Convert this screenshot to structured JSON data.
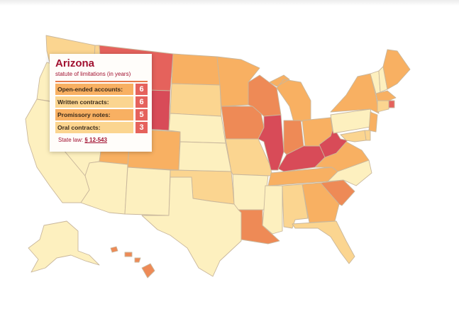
{
  "colors": {
    "y": "#fdf0bf",
    "p": "#fbd590",
    "o": "#f8b062",
    "d": "#ee8a56",
    "r": "#e5625c",
    "x": "#d84b58",
    "border": "#c9b79c"
  },
  "states": [
    {
      "id": "WA",
      "c": "p"
    },
    {
      "id": "OR",
      "c": "y"
    },
    {
      "id": "CA",
      "c": "y"
    },
    {
      "id": "ID",
      "c": "p"
    },
    {
      "id": "NV",
      "c": "y"
    },
    {
      "id": "MT",
      "c": "r"
    },
    {
      "id": "WY",
      "c": "x"
    },
    {
      "id": "UT",
      "c": "o"
    },
    {
      "id": "AZ",
      "c": "y"
    },
    {
      "id": "CO",
      "c": "o"
    },
    {
      "id": "NM",
      "c": "y"
    },
    {
      "id": "ND",
      "c": "o"
    },
    {
      "id": "SD",
      "c": "p"
    },
    {
      "id": "NE",
      "c": "y"
    },
    {
      "id": "KS",
      "c": "y"
    },
    {
      "id": "OK",
      "c": "p"
    },
    {
      "id": "TX",
      "c": "y"
    },
    {
      "id": "MN",
      "c": "o"
    },
    {
      "id": "IA",
      "c": "d"
    },
    {
      "id": "MO",
      "c": "p"
    },
    {
      "id": "AR",
      "c": "y"
    },
    {
      "id": "LA",
      "c": "d"
    },
    {
      "id": "WI",
      "c": "d"
    },
    {
      "id": "IL",
      "c": "x"
    },
    {
      "id": "MS",
      "c": "y"
    },
    {
      "id": "MI",
      "c": "o"
    },
    {
      "id": "IN",
      "c": "d"
    },
    {
      "id": "KY",
      "c": "x"
    },
    {
      "id": "TN",
      "c": "o"
    },
    {
      "id": "AL",
      "c": "p"
    },
    {
      "id": "OH",
      "c": "o"
    },
    {
      "id": "GA",
      "c": "o"
    },
    {
      "id": "FL",
      "c": "p"
    },
    {
      "id": "SC",
      "c": "d"
    },
    {
      "id": "NC",
      "c": "y"
    },
    {
      "id": "VA",
      "c": "o"
    },
    {
      "id": "WV",
      "c": "x"
    },
    {
      "id": "PA",
      "c": "y"
    },
    {
      "id": "NY",
      "c": "o"
    },
    {
      "id": "VT",
      "c": "y"
    },
    {
      "id": "NH",
      "c": "y"
    },
    {
      "id": "ME",
      "c": "o"
    },
    {
      "id": "MA",
      "c": "o"
    },
    {
      "id": "RI",
      "c": "r"
    },
    {
      "id": "CT",
      "c": "p"
    },
    {
      "id": "NJ",
      "c": "o"
    },
    {
      "id": "DE",
      "c": "p"
    },
    {
      "id": "MD",
      "c": "p"
    },
    {
      "id": "AK",
      "c": "y"
    },
    {
      "id": "HI",
      "c": "d"
    }
  ],
  "tooltip": {
    "state": "Arizona",
    "subtitle": "statute of limitations (in years)",
    "rows": [
      {
        "label": "Open-ended accounts:",
        "value": "6",
        "color": "o"
      },
      {
        "label": "Written contracts:",
        "value": "6",
        "color": "p"
      },
      {
        "label": "Promissory notes:",
        "value": "5",
        "color": "o"
      },
      {
        "label": "Oral contracts:",
        "value": "3",
        "color": "p"
      }
    ],
    "law_prefix": "State law:",
    "law_link": "§ 12-543"
  }
}
